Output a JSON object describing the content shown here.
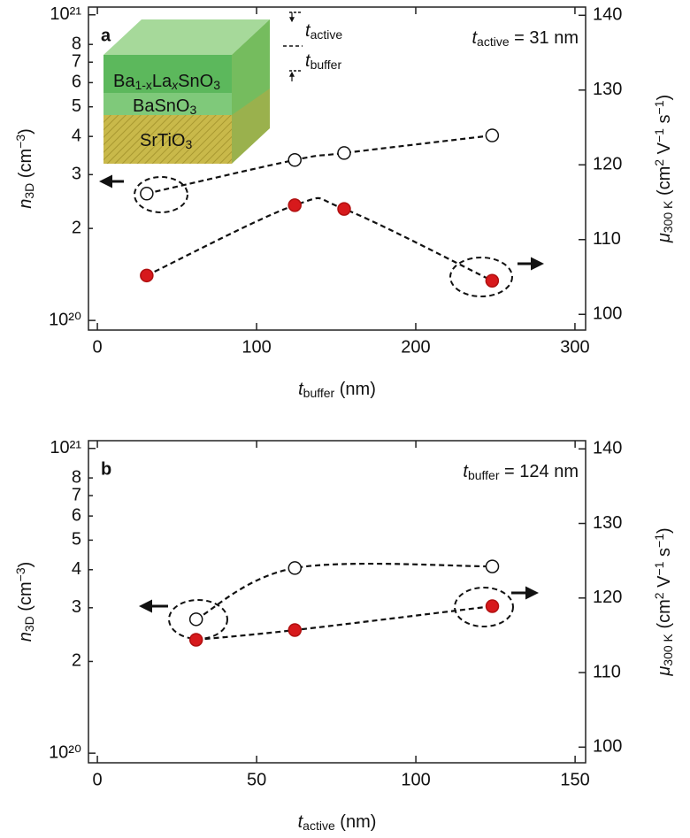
{
  "chart_data": [
    {
      "type": "scatter",
      "panel_label": "a",
      "annotation": [
        {
          "text": "t",
          "style": "italic"
        },
        {
          "text": "active",
          "style": "sub"
        },
        {
          "text": " = 31 nm"
        }
      ],
      "xlabel": [
        {
          "text": "t",
          "style": "italic"
        },
        {
          "text": "buffer",
          "style": "sub"
        },
        {
          "text": " (nm)"
        }
      ],
      "ylabel": [
        {
          "text": "n",
          "style": "italic"
        },
        {
          "text": "3D",
          "style": "sub"
        },
        {
          "text": " (cm"
        },
        {
          "text": "−3",
          "style": "sup"
        },
        {
          "text": ")"
        }
      ],
      "y2label": [
        {
          "text": "μ",
          "style": "italic"
        },
        {
          "text": "300 K",
          "style": "sub"
        },
        {
          "text": " (cm"
        },
        {
          "text": "2",
          "style": "sup"
        },
        {
          "text": " V"
        },
        {
          "text": "−1",
          "style": "sup"
        },
        {
          "text": " s"
        },
        {
          "text": "−1",
          "style": "sup"
        },
        {
          "text": ")"
        }
      ],
      "xlim": [
        -5.6,
        306.7
      ],
      "xticks": [
        0,
        100,
        200,
        300
      ],
      "log_y": true,
      "ylim": [
        9.3e+19,
        1.06e+21
      ],
      "yticks": [
        {
          "value": 1e+20,
          "label": "10²⁰"
        },
        {
          "value": 2e+20,
          "label": "2"
        },
        {
          "value": 3e+20,
          "label": "3"
        },
        {
          "value": 4e+20,
          "label": "4"
        },
        {
          "value": 5e+20,
          "label": "5"
        },
        {
          "value": 6e+20,
          "label": "6"
        },
        {
          "value": 7e+20,
          "label": "7"
        },
        {
          "value": 8e+20,
          "label": "8"
        },
        {
          "value": 1e+21,
          "label": "10²¹"
        }
      ],
      "y2lim": [
        97.9,
        141.1
      ],
      "y2ticks": [
        100,
        110,
        120,
        130,
        140
      ],
      "x": [
        31,
        124,
        155,
        248
      ],
      "series": [
        {
          "axis": "y",
          "color": "#ffffff",
          "values": [
            2.6e+20,
            3.35e+20,
            3.53e+20,
            4.03e+20
          ]
        },
        {
          "axis": "y2",
          "color": "#d7191c",
          "values": [
            105.2,
            114.6,
            114.1,
            104.5
          ]
        }
      ],
      "inset": {
        "layers": [
          [
            {
              "text": "Ba"
            },
            {
              "text": "1-x",
              "style": "sub"
            },
            {
              "text": "La"
            },
            {
              "text": "x",
              "style": "italic-sub"
            },
            {
              "text": "SnO"
            },
            {
              "text": "3",
              "style": "sub"
            }
          ],
          [
            {
              "text": "BaSnO"
            },
            {
              "text": "3",
              "style": "sub"
            }
          ],
          [
            {
              "text": "SrTiO"
            },
            {
              "text": "3",
              "style": "sub"
            }
          ]
        ],
        "t_active": [
          {
            "text": "t",
            "style": "italic"
          },
          {
            "text": "active",
            "style": "sub"
          }
        ],
        "t_buffer": [
          {
            "text": "t",
            "style": "italic"
          },
          {
            "text": "buffer",
            "style": "sub"
          }
        ]
      }
    },
    {
      "type": "scatter",
      "panel_label": "b",
      "annotation": [
        {
          "text": "t",
          "style": "italic"
        },
        {
          "text": "buffer",
          "style": "sub"
        },
        {
          "text": " = 124 nm"
        }
      ],
      "xlabel": [
        {
          "text": "t",
          "style": "italic"
        },
        {
          "text": "active",
          "style": "sub"
        },
        {
          "text": " (nm)"
        }
      ],
      "ylabel": [
        {
          "text": "n",
          "style": "italic"
        },
        {
          "text": "3D",
          "style": "sub"
        },
        {
          "text": " (cm"
        },
        {
          "text": "−3",
          "style": "sup"
        },
        {
          "text": ")"
        }
      ],
      "y2label": [
        {
          "text": "μ",
          "style": "italic"
        },
        {
          "text": "300 K",
          "style": "sub"
        },
        {
          "text": " (cm"
        },
        {
          "text": "2",
          "style": "sup"
        },
        {
          "text": " V"
        },
        {
          "text": "−1",
          "style": "sup"
        },
        {
          "text": " s"
        },
        {
          "text": "−1",
          "style": "sup"
        },
        {
          "text": ")"
        }
      ],
      "xlim": [
        -2.8,
        153.3
      ],
      "xticks": [
        0,
        50,
        100,
        150
      ],
      "log_y": true,
      "ylim": [
        9.3e+19,
        1.06e+21
      ],
      "yticks": [
        {
          "value": 1e+20,
          "label": "10²⁰"
        },
        {
          "value": 2e+20,
          "label": "2"
        },
        {
          "value": 3e+20,
          "label": "3"
        },
        {
          "value": 4e+20,
          "label": "4"
        },
        {
          "value": 5e+20,
          "label": "5"
        },
        {
          "value": 6e+20,
          "label": "6"
        },
        {
          "value": 7e+20,
          "label": "7"
        },
        {
          "value": 8e+20,
          "label": "8"
        },
        {
          "value": 1e+21,
          "label": "10²¹"
        }
      ],
      "y2lim": [
        97.9,
        141.1
      ],
      "y2ticks": [
        100,
        110,
        120,
        130,
        140
      ],
      "x": [
        31,
        62,
        124
      ],
      "series": [
        {
          "axis": "y",
          "color": "#ffffff",
          "values": [
            2.75e+20,
            4.05e+20,
            4.1e+20
          ]
        },
        {
          "axis": "y2",
          "color": "#d7191c",
          "values": [
            114.4,
            115.7,
            118.9
          ]
        }
      ]
    }
  ]
}
